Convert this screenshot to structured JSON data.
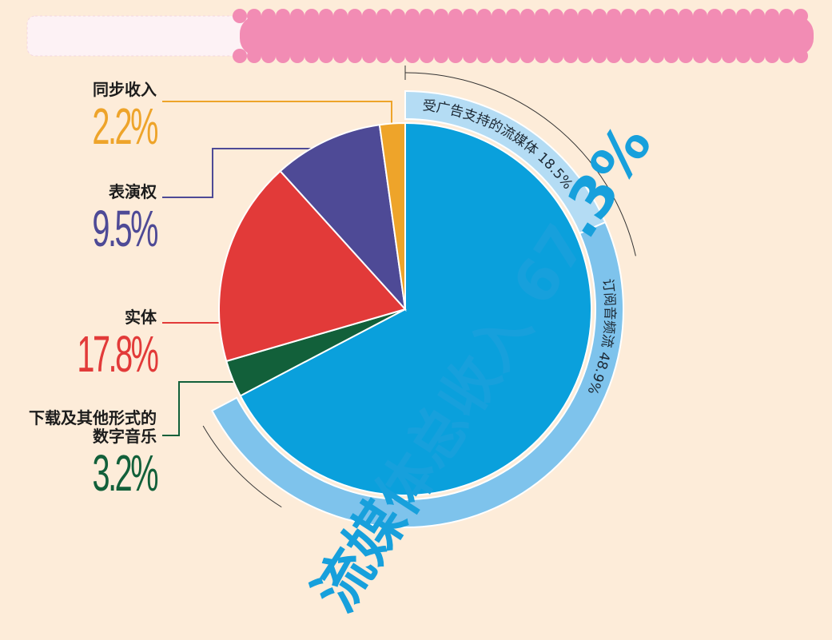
{
  "chart_data": {
    "type": "pie",
    "slices": [
      {
        "label": "同步收入",
        "value": 2.2,
        "display": "2.2%",
        "color": "#eea42a"
      },
      {
        "label": "表演权",
        "value": 9.5,
        "display": "9.5%",
        "color": "#4e4a96"
      },
      {
        "label": "实体",
        "value": 17.8,
        "display": "17.8%",
        "color": "#e23a39"
      },
      {
        "label": "下载及其他形式的数字音乐",
        "label_lines": [
          "下载及其他形式的",
          "数字音乐"
        ],
        "value": 3.2,
        "display": "3.2%",
        "color": "#12603a"
      },
      {
        "label": "流媒体总收入",
        "value": 67.3,
        "display": "67.3%",
        "color": "#0aa0dc"
      }
    ],
    "streaming_breakdown": [
      {
        "label": "受广告支持的流媒体",
        "value": 18.5,
        "display": "18.5%",
        "color": "#b4dcf4"
      },
      {
        "label": "订阅音频流",
        "value": 48.9,
        "display": "48.9%",
        "color": "#7ec3ec"
      }
    ],
    "streaming_total": {
      "label": "流媒体总收入",
      "display": "67.3%"
    }
  },
  "colors": {
    "background": "#fdecd9",
    "banner": "#f28cb4",
    "total_label": "#17a0dc"
  }
}
